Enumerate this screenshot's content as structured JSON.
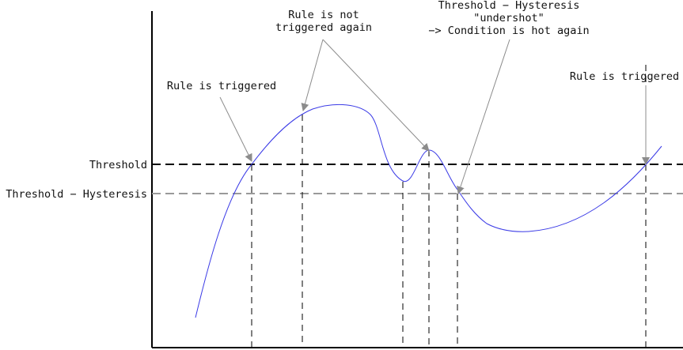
{
  "colors": {
    "axis": "#000000",
    "threshold_line": "#000000",
    "hysteresis_line": "#9a9a9a",
    "curve": "#3a3ae6",
    "arrow": "#8c8c8c",
    "guide": "#000000",
    "text": "#111111"
  },
  "labels": {
    "threshold": "Threshold",
    "hysteresis": "Threshold − Hysteresis"
  },
  "annotations": {
    "triggered_left": "Rule is triggered",
    "not_triggered": [
      "Rule is not",
      "triggered again"
    ],
    "undershot": [
      "Threshold − Hysteresis",
      "\"undershot\"",
      "−> Condition is hot again"
    ],
    "triggered_right": "Rule is triggered"
  }
}
